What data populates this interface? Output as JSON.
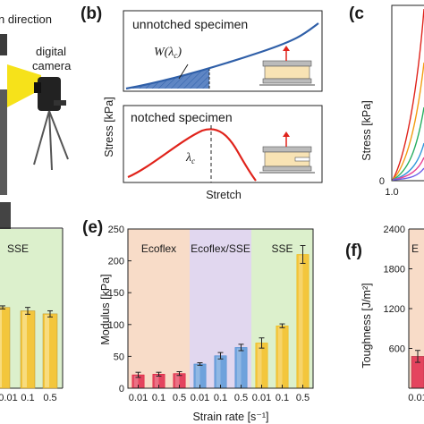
{
  "panels": {
    "a": {
      "direction_label": "n direction",
      "camera_label_line1": "digital",
      "camera_label_line2": "camera",
      "bottom_label": "SSE",
      "bottom_ticks": [
        "0.01",
        "0.1",
        "0.5"
      ],
      "colors": {
        "beam": "#f6e21a",
        "bar": "#f3c63c",
        "bg": "#dff0cf"
      }
    },
    "b": {
      "letter": "(b)",
      "top_title": "unnotched specimen",
      "work_label": "W(λ",
      "work_sub": "c",
      "work_close": ")",
      "bottom_title": "notched specimen",
      "lambda_label": "λ",
      "lambda_sub": "c",
      "ylabel": "Stress [kPa]",
      "xlabel": "Stretch",
      "colors": {
        "unnotched": "#2f5fa8",
        "notched": "#e0231b",
        "specimen": "#f8e3b4"
      }
    },
    "c": {
      "letter": "(c",
      "ylabel": "Stress [kPa]",
      "x_tick": "1.0",
      "y_tick": "0"
    },
    "e": {
      "letter": "(e)",
      "regions": [
        {
          "label": "Ecoflex",
          "color": "#f8dcc8"
        },
        {
          "label": "Ecoflex/SSE",
          "color": "#e1d7ef"
        },
        {
          "label": "SSE",
          "color": "#dcf0cc"
        }
      ],
      "bar_colors": [
        "#e4445e",
        "#6fa2dc",
        "#f3c63c"
      ]
    },
    "f": {
      "letter": "(f)",
      "ylabel": "Toughness [J/m²]",
      "region_label": "E",
      "region_color": "#f8dcc8",
      "bar_color": "#e4445e"
    }
  },
  "chart_data": [
    {
      "type": "bar",
      "panel": "e",
      "title": "",
      "xlabel": "Strain rate [s⁻¹]",
      "ylabel": "Modulus [kPa]",
      "ylim": [
        0,
        250
      ],
      "yticks": [
        0,
        50,
        100,
        150,
        200,
        250
      ],
      "grid": false,
      "categories": [
        "0.01",
        "0.1",
        "0.5",
        "0.01",
        "0.1",
        "0.5",
        "0.01",
        "0.1",
        "0.5"
      ],
      "groups": [
        "Ecoflex",
        "Ecoflex/SSE",
        "SSE"
      ],
      "values": [
        21,
        22,
        23,
        38,
        51,
        64,
        71,
        98,
        210
      ],
      "errors": [
        4,
        3,
        3,
        2,
        5,
        5,
        8,
        3,
        14
      ]
    },
    {
      "type": "bar",
      "panel": "f",
      "title": "",
      "xlabel": "",
      "ylabel": "Toughness [J/m²]",
      "ylim": [
        0,
        2400
      ],
      "yticks": [
        600,
        1200,
        1800,
        2400
      ],
      "categories": [
        "0.01"
      ],
      "values": [
        480
      ],
      "errors": [
        90
      ]
    },
    {
      "type": "bar",
      "panel": "d",
      "title": "",
      "categories": [
        "0.01",
        "0.1",
        "0.5"
      ],
      "values": [
        212,
        203,
        195
      ],
      "errors": [
        4,
        9,
        8
      ]
    }
  ]
}
